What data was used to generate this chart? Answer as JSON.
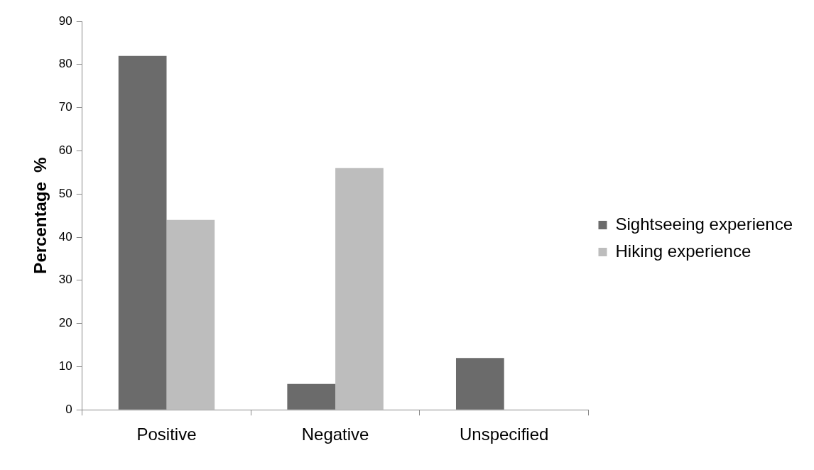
{
  "chart_data": {
    "type": "bar",
    "ylabel": "Percentage  %",
    "categories": [
      "Positive",
      "Negative",
      "Unspecified"
    ],
    "series": [
      {
        "name": "Sightseeing experience",
        "color": "#6b6b6b",
        "values": [
          82,
          6,
          12
        ]
      },
      {
        "name": "Hiking experience",
        "color": "#bdbdbd",
        "values": [
          44,
          56,
          0
        ]
      }
    ],
    "ylim": [
      0,
      90
    ],
    "yticks": [
      0,
      10,
      20,
      30,
      40,
      50,
      60,
      70,
      80,
      90
    ],
    "legend": "right"
  }
}
